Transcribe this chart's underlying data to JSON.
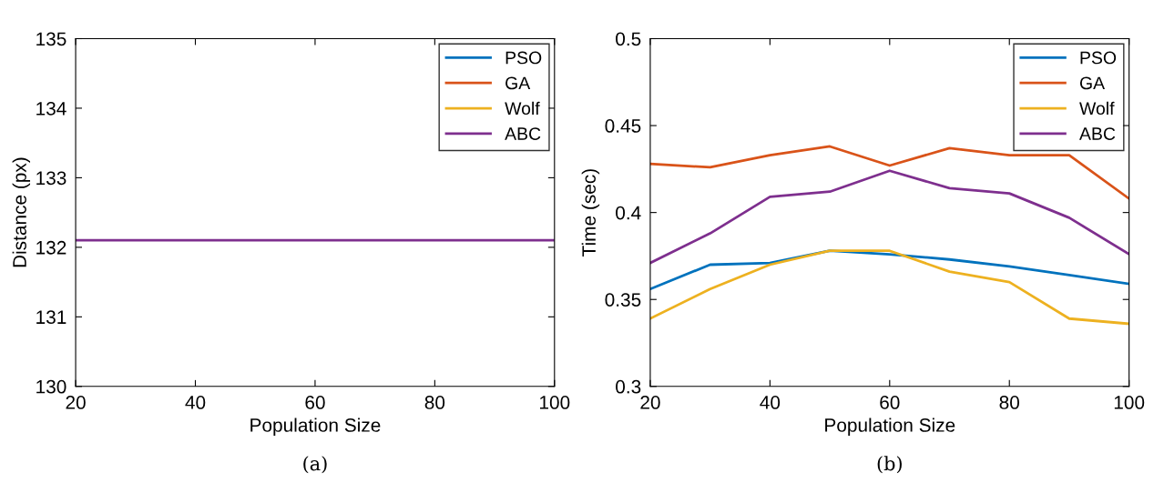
{
  "chart_data": [
    {
      "type": "line",
      "xlabel": "Population Size",
      "ylabel": "Distance (px)",
      "annotations": [
        "(a)"
      ],
      "x": [
        20,
        30,
        40,
        50,
        60,
        70,
        80,
        90,
        100
      ],
      "xlim": [
        20,
        100
      ],
      "xticks": [
        20,
        40,
        60,
        80,
        100
      ],
      "ylim": [
        130,
        135
      ],
      "yticks": [
        130,
        131,
        132,
        133,
        134,
        135
      ],
      "grid": false,
      "legend": "top right",
      "series": [
        {
          "name": "PSO",
          "color": "#0072bd",
          "values": [
            null,
            null,
            null,
            null,
            null,
            null,
            null,
            null,
            null
          ]
        },
        {
          "name": "GA",
          "color": "#d95319",
          "values": [
            null,
            null,
            null,
            null,
            null,
            null,
            null,
            null,
            null
          ]
        },
        {
          "name": "Wolf",
          "color": "#edb120",
          "values": [
            null,
            null,
            null,
            null,
            null,
            null,
            null,
            null,
            null
          ]
        },
        {
          "name": "ABC",
          "color": "#7e2f8e",
          "values": [
            132.1,
            132.1,
            132.1,
            132.1,
            132.1,
            132.1,
            132.1,
            132.1,
            132.1
          ]
        }
      ]
    },
    {
      "type": "line",
      "xlabel": "Population Size",
      "ylabel": "Time (sec)",
      "annotations": [
        "(b)"
      ],
      "x": [
        20,
        30,
        40,
        50,
        60,
        70,
        80,
        90,
        100
      ],
      "xlim": [
        20,
        100
      ],
      "xticks": [
        20,
        40,
        60,
        80,
        100
      ],
      "ylim": [
        0.3,
        0.5
      ],
      "yticks": [
        0.3,
        0.35,
        0.4,
        0.45,
        0.5
      ],
      "grid": false,
      "legend": "top right",
      "series": [
        {
          "name": "PSO",
          "color": "#0072bd",
          "values": [
            0.356,
            0.37,
            0.371,
            0.378,
            0.376,
            0.373,
            0.369,
            0.364,
            0.359
          ]
        },
        {
          "name": "GA",
          "color": "#d95319",
          "values": [
            0.428,
            0.426,
            0.433,
            0.438,
            0.427,
            0.437,
            0.433,
            0.433,
            0.408
          ]
        },
        {
          "name": "Wolf",
          "color": "#edb120",
          "values": [
            0.339,
            0.356,
            0.37,
            0.378,
            0.378,
            0.366,
            0.36,
            0.339,
            0.336
          ]
        },
        {
          "name": "ABC",
          "color": "#7e2f8e",
          "values": [
            0.371,
            0.388,
            0.409,
            0.412,
            0.424,
            0.414,
            0.411,
            0.397,
            0.376
          ]
        }
      ]
    }
  ]
}
